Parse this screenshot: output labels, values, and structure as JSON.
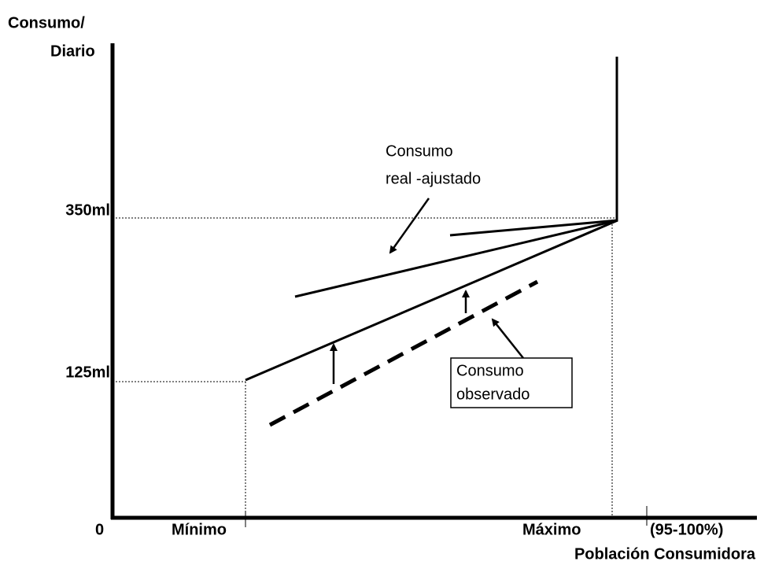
{
  "y_axis_label": {
    "line1": "Consumo/",
    "line2": "Diario"
  },
  "y_labels": [
    "350ml",
    "125ml",
    "0"
  ],
  "x_labels": [
    "Mínimo",
    "Máximo",
    "(95-100%)"
  ],
  "x_axis_title": "Población Consumidora",
  "annotations": [
    {
      "lines": [
        "Consumo",
        "real -ajustado"
      ]
    },
    {
      "lines": [
        "Consumo",
        "observado"
      ]
    }
  ]
}
